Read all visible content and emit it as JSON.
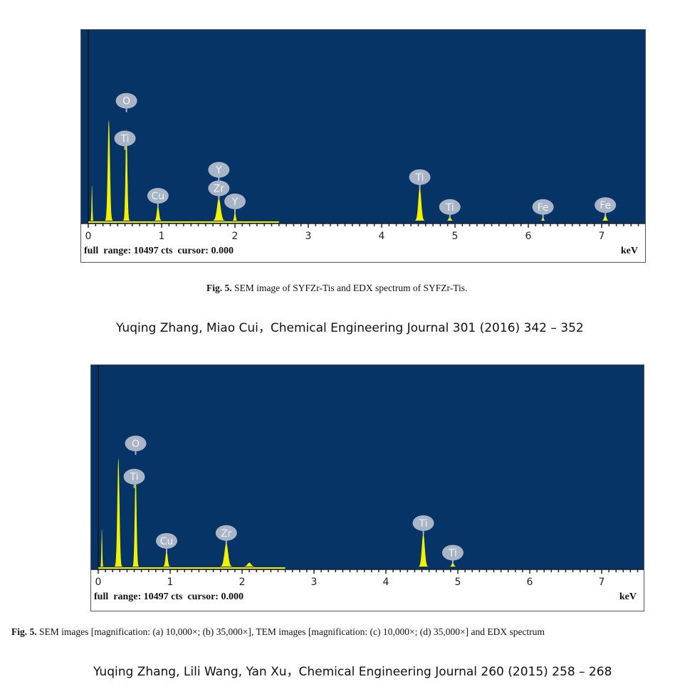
{
  "colors": {
    "plot_bg": "#073466",
    "peak": "#f2f200",
    "label_bg": "#a9b4c6",
    "label_text": "#eef2f8"
  },
  "chart_data": [
    {
      "type": "area",
      "title": "EDX spectrum of SYFZr-Tis",
      "xlabel": "keV",
      "xlim": [
        0,
        7.5
      ],
      "x_ticks": [
        "0",
        "1",
        "2",
        "3",
        "4",
        "5",
        "6",
        "7"
      ],
      "footer_left": "full  range: 10497 cts  cursor: 0.000",
      "footer_right": "keV",
      "peaks": [
        {
          "e": 0.05,
          "h": 0.19,
          "w": 0.012
        },
        {
          "e": 0.28,
          "h": 0.54,
          "w": 0.03,
          "label": "Ti",
          "stack": 0,
          "lx": 0.5
        },
        {
          "e": 0.52,
          "h": 0.49,
          "w": 0.025,
          "label": "O",
          "stack": 1
        },
        {
          "e": 0.95,
          "h": 0.08,
          "w": 0.03,
          "label": "Cu",
          "stack": 0
        },
        {
          "e": 1.78,
          "h": 0.12,
          "w": 0.05,
          "label": "Zr",
          "stack": 0
        },
        {
          "e": 1.78,
          "h": 0.0,
          "w": 0.05,
          "label": "Y",
          "stack": 1
        },
        {
          "e": 2.0,
          "h": 0.05,
          "w": 0.02,
          "label": "Y",
          "stack": 0
        },
        {
          "e": 4.52,
          "h": 0.18,
          "w": 0.04,
          "label": "Ti",
          "stack": 0
        },
        {
          "e": 4.93,
          "h": 0.02,
          "w": 0.03,
          "label": "Ti",
          "stack": 0
        },
        {
          "e": 6.2,
          "h": 0.02,
          "w": 0.02,
          "label": "Fe",
          "stack": 0
        },
        {
          "e": 7.05,
          "h": 0.03,
          "w": 0.03,
          "label": "Fe",
          "stack": 0
        }
      ]
    },
    {
      "type": "area",
      "title": "EDX spectrum",
      "xlabel": "keV",
      "xlim": [
        0,
        7.5
      ],
      "x_ticks": [
        "0",
        "1",
        "2",
        "3",
        "4",
        "5",
        "6",
        "7"
      ],
      "footer_left": "full  range: 10497 cts  cursor: 0.000",
      "footer_right": "keV",
      "peaks": [
        {
          "e": 0.05,
          "h": 0.19,
          "w": 0.012
        },
        {
          "e": 0.28,
          "h": 0.55,
          "w": 0.03,
          "label": "Ti",
          "stack": 0,
          "lx": 0.5
        },
        {
          "e": 0.52,
          "h": 0.48,
          "w": 0.025,
          "label": "O",
          "stack": 1
        },
        {
          "e": 0.95,
          "h": 0.08,
          "w": 0.03,
          "label": "Cu",
          "stack": 0
        },
        {
          "e": 1.78,
          "h": 0.12,
          "w": 0.05,
          "label": "Zr",
          "stack": 0
        },
        {
          "e": 2.1,
          "h": 0.02,
          "w": 0.05
        },
        {
          "e": 4.52,
          "h": 0.17,
          "w": 0.04,
          "label": "Ti",
          "stack": 0
        },
        {
          "e": 4.93,
          "h": 0.02,
          "w": 0.03,
          "label": "Ti",
          "stack": 0
        }
      ]
    }
  ],
  "caption1": {
    "prefix": "Fig. 5.",
    "text": " SEM image of SYFZr-Tis and EDX spectrum of SYFZr-Tis."
  },
  "cite1": "Yuqing Zhang, Miao Cui，Chemical Engineering Journal 301 (2016) 342 – 352",
  "caption2": {
    "prefix": "Fig. 5.",
    "text": " SEM images [magnification: (a) 10,000×; (b) 35,000×], TEM images [magnification: (c) 10,000×; (d) 35,000×] and EDX spectrum"
  },
  "cite2": "Yuqing Zhang, Lili Wang, Yan Xu，Chemical Engineering Journal 260 (2015) 258 – 268"
}
